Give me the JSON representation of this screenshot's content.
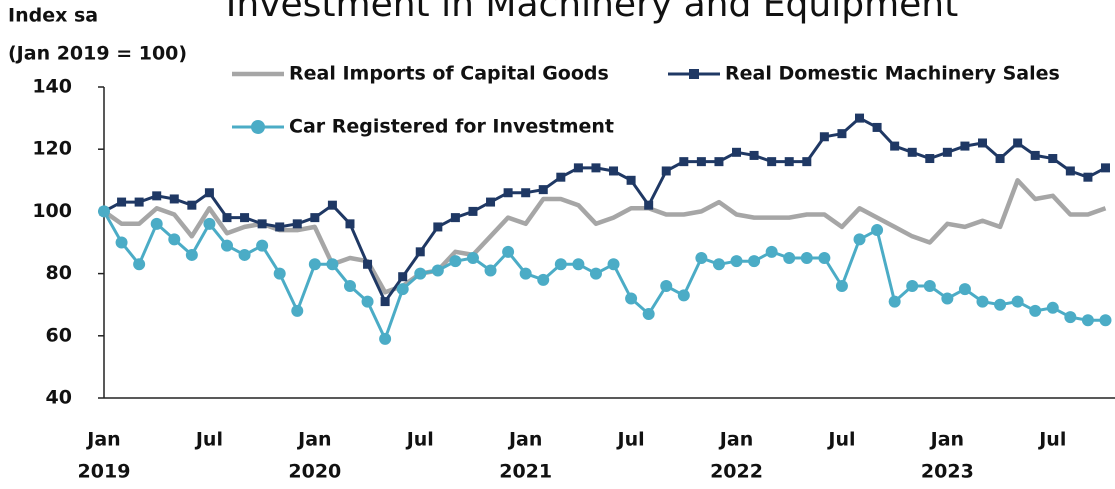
{
  "chart_data": {
    "type": "line",
    "title": "Investment in Machinery and Equipment",
    "y_label_lines": [
      "Index sa",
      "(Jan 2019 = 100)"
    ],
    "categories": [
      "Jan",
      null,
      null,
      null,
      null,
      null,
      "Jul",
      null,
      null,
      null,
      null,
      null,
      "Jan",
      null,
      null,
      null,
      null,
      null,
      "Jul",
      null,
      null,
      null,
      null,
      null,
      "Jan",
      null,
      null,
      null,
      null,
      null,
      "Jul",
      null,
      null,
      null,
      null,
      null,
      "Jan",
      null,
      null,
      null,
      null,
      null,
      "Jul",
      null,
      null,
      null,
      null,
      null,
      "Jan",
      null,
      null,
      null,
      null,
      null,
      "Jul",
      null,
      null,
      null
    ],
    "category_groups": [
      "2019",
      "2020",
      "2021",
      "2022",
      "2023"
    ],
    "ylim": [
      40,
      140
    ],
    "yticks": [
      40,
      60,
      80,
      100,
      120,
      140
    ],
    "grid": false,
    "legend": "top",
    "series": [
      {
        "name": "Real Imports of Capital Goods",
        "color": "#a6a6a6",
        "marker": "none",
        "values": [
          100,
          96,
          96,
          101,
          99,
          92,
          101,
          93,
          95,
          96,
          94,
          94,
          95,
          83,
          85,
          84,
          74,
          76,
          80,
          81,
          87,
          86,
          92,
          98,
          96,
          104,
          104,
          102,
          96,
          98,
          101,
          101,
          99,
          99,
          100,
          103,
          99,
          98,
          98,
          98,
          99,
          99,
          95,
          101,
          98,
          95,
          92,
          90,
          96,
          95,
          97,
          95,
          110,
          104,
          105,
          99,
          99,
          101
        ]
      },
      {
        "name": "Real Domestic Machinery Sales",
        "color": "#1f3864",
        "marker": "square",
        "values": [
          100,
          103,
          103,
          105,
          104,
          102,
          106,
          98,
          98,
          96,
          95,
          96,
          98,
          102,
          96,
          83,
          71,
          79,
          87,
          95,
          98,
          100,
          103,
          106,
          106,
          107,
          111,
          114,
          114,
          113,
          110,
          102,
          113,
          116,
          116,
          116,
          119,
          118,
          116,
          116,
          116,
          124,
          125,
          130,
          127,
          121,
          119,
          117,
          119,
          121,
          122,
          117,
          122,
          118,
          117,
          113,
          111,
          114
        ]
      },
      {
        "name": "Car Registered for Investment",
        "color": "#4bacc6",
        "marker": "circle",
        "values": [
          100,
          90,
          83,
          96,
          91,
          86,
          96,
          89,
          86,
          89,
          80,
          68,
          83,
          83,
          76,
          71,
          59,
          75,
          80,
          81,
          84,
          85,
          81,
          87,
          80,
          78,
          83,
          83,
          80,
          83,
          72,
          67,
          76,
          73,
          85,
          83,
          84,
          84,
          87,
          85,
          85,
          85,
          76,
          91,
          94,
          71,
          76,
          76,
          72,
          75,
          71,
          70,
          71,
          68,
          69,
          66,
          65,
          65
        ]
      }
    ]
  }
}
